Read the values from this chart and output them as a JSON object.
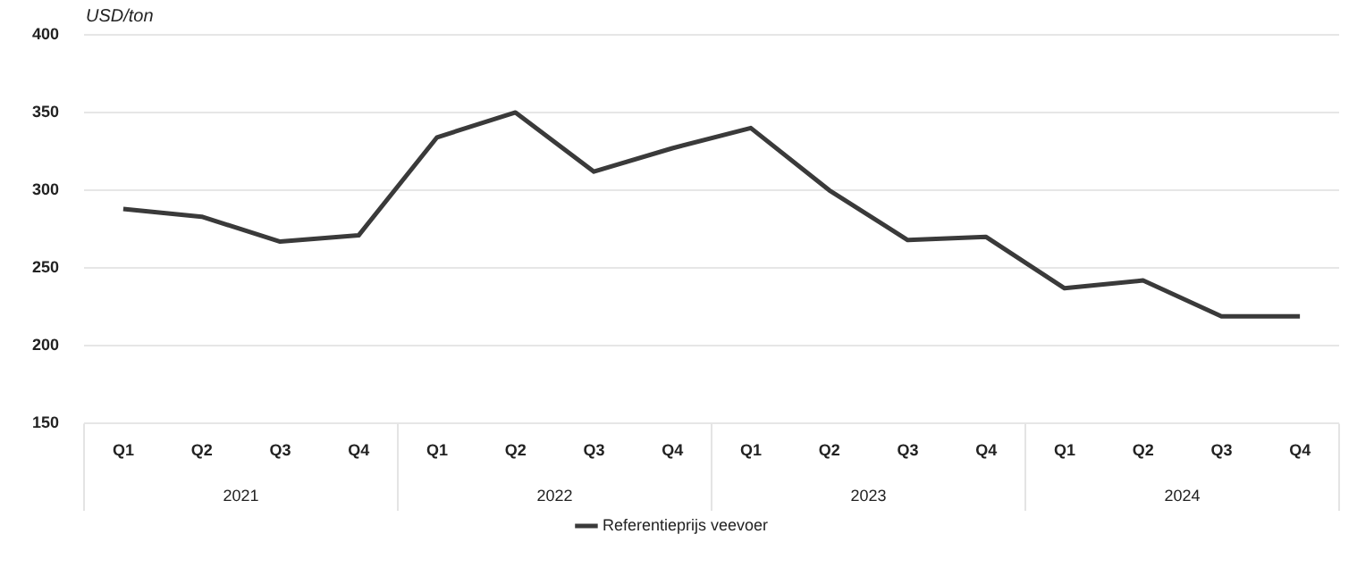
{
  "chart_data": {
    "type": "line",
    "ylabel": "USD/ton",
    "categories": [
      "Q1",
      "Q2",
      "Q3",
      "Q4",
      "Q1",
      "Q2",
      "Q3",
      "Q4",
      "Q1",
      "Q2",
      "Q3",
      "Q4",
      "Q1",
      "Q2",
      "Q3",
      "Q4"
    ],
    "series": [
      {
        "name": "Referentieprijs veevoer",
        "color": "#3a3a3a",
        "values": [
          288,
          283,
          267,
          271,
          334,
          350,
          312,
          327,
          340,
          300,
          268,
          270,
          237,
          242,
          219,
          219
        ]
      }
    ],
    "annotations": [
      "2021",
      "2022",
      "2023",
      "2024"
    ],
    "ylim": [
      150,
      400
    ],
    "yticks": [
      150,
      200,
      250,
      300,
      350,
      400
    ],
    "grid": "y",
    "legend": "bottom",
    "marker": "none",
    "line_style": "solid"
  }
}
